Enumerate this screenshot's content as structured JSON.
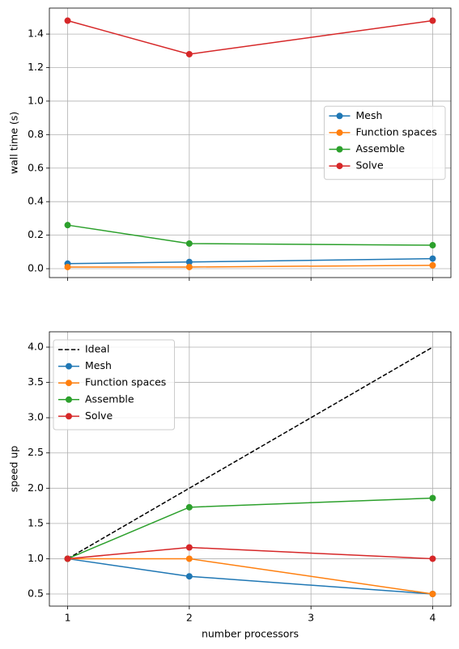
{
  "chart_data": [
    {
      "type": "line",
      "ylabel": "wall time (s)",
      "x": [
        1,
        2,
        4
      ],
      "series": [
        {
          "name": "Mesh",
          "color": "#1f77b4",
          "marker": "o",
          "linestyle": "-",
          "values": [
            0.03,
            0.04,
            0.06
          ]
        },
        {
          "name": "Function spaces",
          "color": "#ff7f0e",
          "marker": "o",
          "linestyle": "-",
          "values": [
            0.01,
            0.01,
            0.02
          ]
        },
        {
          "name": "Assemble",
          "color": "#2ca02c",
          "marker": "o",
          "linestyle": "-",
          "values": [
            0.26,
            0.15,
            0.14
          ]
        },
        {
          "name": "Solve",
          "color": "#d62728",
          "marker": "o",
          "linestyle": "-",
          "values": [
            1.48,
            1.28,
            1.48
          ]
        }
      ],
      "xlim": [
        0.85,
        4.15
      ],
      "ylim": [
        -0.053,
        1.555
      ],
      "xticks": [
        1,
        2,
        3,
        4
      ],
      "xtick_labels": false,
      "yticks": [
        {
          "value": 0,
          "label": "0.0"
        },
        0.2,
        0.4,
        0.6,
        0.8,
        {
          "value": 1,
          "label": "1.0"
        },
        1.2,
        1.4
      ],
      "grid": true,
      "legend": "center right"
    },
    {
      "type": "line",
      "ylabel": "speed up",
      "xlabel": "number processors",
      "x": [
        1,
        2,
        4
      ],
      "series": [
        {
          "name": "Ideal",
          "color": "#000000",
          "marker": "none",
          "linestyle": "--",
          "values": [
            1,
            2,
            4
          ]
        },
        {
          "name": "Mesh",
          "color": "#1f77b4",
          "marker": "o",
          "linestyle": "-",
          "values": [
            1,
            0.75,
            0.5
          ]
        },
        {
          "name": "Function spaces",
          "color": "#ff7f0e",
          "marker": "o",
          "linestyle": "-",
          "values": [
            1,
            1.0,
            0.5
          ]
        },
        {
          "name": "Assemble",
          "color": "#2ca02c",
          "marker": "o",
          "linestyle": "-",
          "values": [
            1,
            1.73,
            1.86
          ]
        },
        {
          "name": "Solve",
          "color": "#d62728",
          "marker": "o",
          "linestyle": "-",
          "values": [
            1,
            1.16,
            1.0
          ]
        }
      ],
      "xlim": [
        0.85,
        4.15
      ],
      "ylim": [
        0.328,
        4.218
      ],
      "xticks": [
        1,
        2,
        3,
        4
      ],
      "xtick_labels": true,
      "yticks": [
        0.5,
        {
          "value": 1,
          "label": "1.0"
        },
        1.5,
        {
          "value": 2,
          "label": "2.0"
        },
        2.5,
        {
          "value": 3,
          "label": "3.0"
        },
        3.5,
        {
          "value": 4,
          "label": "4.0"
        }
      ],
      "grid": true,
      "legend": "upper left"
    }
  ]
}
